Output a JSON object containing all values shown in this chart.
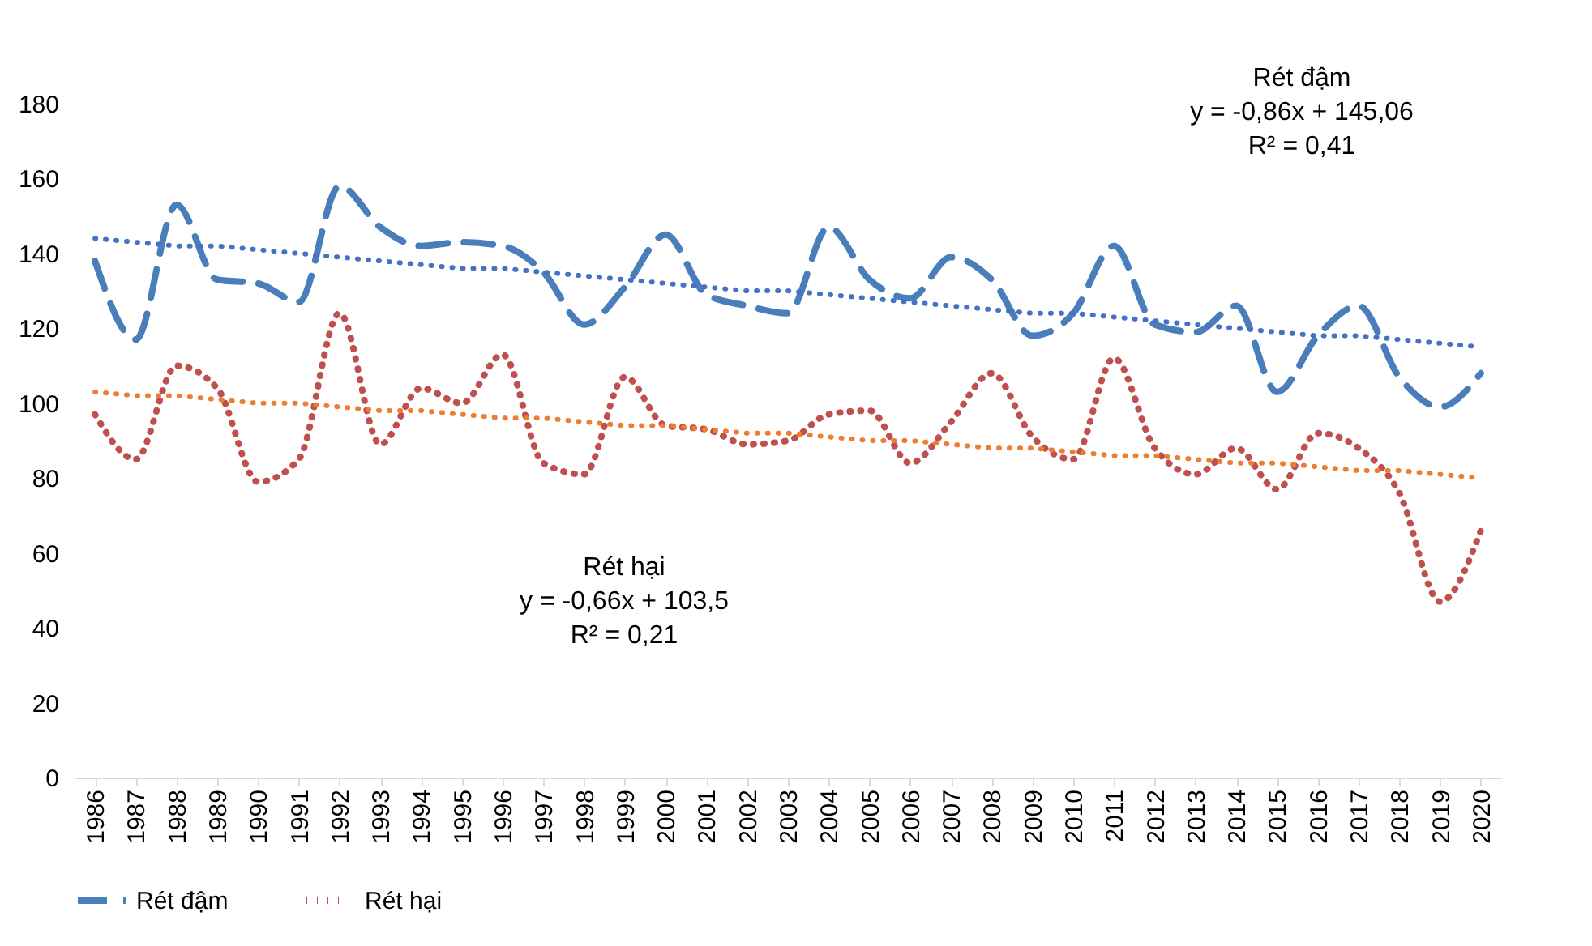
{
  "chart_data": {
    "type": "line",
    "categories": [
      "1986",
      "1987",
      "1988",
      "1989",
      "1990",
      "1991",
      "1992",
      "1993",
      "1994",
      "1995",
      "1996",
      "1997",
      "1998",
      "1999",
      "2000",
      "2001",
      "2002",
      "2003",
      "2004",
      "2005",
      "2006",
      "2007",
      "2008",
      "2009",
      "2010",
      "2011",
      "2012",
      "2013",
      "2014",
      "2015",
      "2016",
      "2017",
      "2018",
      "2019",
      "2020"
    ],
    "series": [
      {
        "name": "Rét đậm",
        "color": "#4a7ebb",
        "line_style": "dashed",
        "values": [
          138,
          117,
          153,
          133,
          132,
          127,
          158,
          147,
          142,
          143,
          142,
          135,
          121,
          131,
          145,
          129,
          126,
          124,
          147,
          133,
          128,
          139,
          133,
          118,
          124,
          142,
          121,
          119,
          126,
          103,
          118,
          126,
          107,
          99,
          108
        ]
      },
      {
        "name": "Rét hại",
        "color": "#c0504d",
        "line_style": "dotted",
        "values": [
          97,
          85,
          110,
          104,
          79,
          85,
          124,
          89,
          104,
          100,
          113,
          84,
          81,
          107,
          94,
          93,
          89,
          90,
          97,
          98,
          84,
          95,
          108,
          91,
          85,
          112,
          88,
          81,
          88,
          77,
          92,
          88,
          76,
          47,
          66
        ]
      },
      {
        "type": "line",
        "color": "#4472c4",
        "line_style": "dotted",
        "values": [
          144,
          143,
          142,
          142,
          141,
          140,
          139,
          138,
          137,
          136,
          136,
          135,
          134,
          133,
          132,
          131,
          130,
          130,
          129,
          128,
          127,
          126,
          125,
          124,
          124,
          123,
          122,
          121,
          120,
          119,
          118,
          118,
          117,
          116,
          115
        ]
      },
      {
        "type": "line",
        "color": "#ed7d31",
        "line_style": "dotted",
        "values": [
          103,
          102,
          102,
          101,
          100,
          100,
          99,
          98,
          98,
          97,
          96,
          96,
          95,
          94,
          94,
          93,
          92,
          92,
          91,
          90,
          90,
          89,
          88,
          88,
          87,
          86,
          86,
          85,
          84,
          84,
          83,
          82,
          82,
          81,
          80
        ]
      }
    ],
    "ylim": [
      0,
      180
    ],
    "yticks": [
      0,
      20,
      40,
      60,
      80,
      100,
      120,
      140,
      160,
      180
    ],
    "annotations": [
      "Rét đậm\ny = -0,86x + 145,06\nR² = 0,41",
      "Rét hại\ny = -0,66x + 103,5\nR² = 0,21"
    ],
    "grid": false,
    "legend": "bottom",
    "marker": "none"
  }
}
